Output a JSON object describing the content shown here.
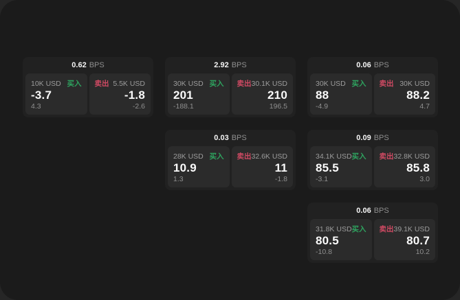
{
  "labels": {
    "buy": "买入",
    "sell": "卖出",
    "bps_unit": "BPS"
  },
  "colors": {
    "background": "#262626",
    "surface": "#1b1b1b",
    "card": "#212121",
    "panel": "#2b2b2b",
    "buy_green": "#2ea35f",
    "sell_red": "#cf4a63"
  },
  "cards": [
    {
      "bps": "0.62",
      "buy": {
        "amount": "10K USD",
        "price": "-3.7",
        "delta": "4.3"
      },
      "sell": {
        "amount": "5.5K USD",
        "price": "-1.8",
        "delta": "-2.6"
      }
    },
    {
      "bps": "2.92",
      "buy": {
        "amount": "30K USD",
        "price": "201",
        "delta": "-188.1"
      },
      "sell": {
        "amount": "30.1K USD",
        "price": "210",
        "delta": "196.5"
      }
    },
    {
      "bps": "0.06",
      "buy": {
        "amount": "30K USD",
        "price": "88",
        "delta": "-4.9"
      },
      "sell": {
        "amount": "30K USD",
        "price": "88.2",
        "delta": "4.7"
      }
    },
    {
      "bps": "0.03",
      "buy": {
        "amount": "28K USD",
        "price": "10.9",
        "delta": "1.3"
      },
      "sell": {
        "amount": "32.6K USD",
        "price": "11",
        "delta": "-1.8"
      }
    },
    {
      "bps": "0.09",
      "buy": {
        "amount": "34.1K USD",
        "price": "85.5",
        "delta": "-3.1"
      },
      "sell": {
        "amount": "32.8K USD",
        "price": "85.8",
        "delta": "3.0"
      }
    },
    {
      "bps": "0.06",
      "buy": {
        "amount": "31.8K USD",
        "price": "80.5",
        "delta": "-10.8"
      },
      "sell": {
        "amount": "39.1K USD",
        "price": "80.7",
        "delta": "10.2"
      }
    }
  ]
}
